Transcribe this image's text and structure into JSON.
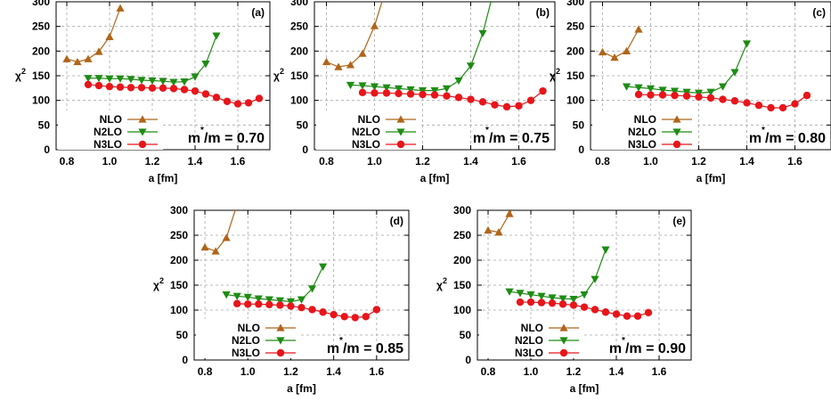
{
  "colors": {
    "NLO": "#b0651a",
    "N2LO": "#1e8c14",
    "N3LO": "#e8151a",
    "grid": "#a8a8a8"
  },
  "chart_data": [
    {
      "type": "line",
      "panel": "(a)",
      "xlabel": "a  [fm]",
      "ylabel": "χ",
      "xlim": [
        0.75,
        1.75
      ],
      "ylim": [
        0,
        300
      ],
      "xticks": [
        "0.8",
        "1.0",
        "1.2",
        "1.4",
        "1.6"
      ],
      "yticks": [
        "0",
        "50",
        "100",
        "150",
        "200",
        "250",
        "300"
      ],
      "ratio_m": "m",
      "ratio_rest": "/m = 0.70",
      "series": [
        {
          "name": "NLO",
          "marker": "triangle-up",
          "x": [
            0.8,
            0.85,
            0.9,
            0.95,
            1.0,
            1.05
          ],
          "y": [
            184,
            178,
            184,
            199,
            229,
            287
          ]
        },
        {
          "name": "N2LO",
          "marker": "triangle-down",
          "x": [
            0.9,
            0.95,
            1.0,
            1.05,
            1.1,
            1.15,
            1.2,
            1.25,
            1.3,
            1.35,
            1.4,
            1.45,
            1.5
          ],
          "y": [
            145,
            145,
            144,
            144,
            143,
            141,
            140,
            139,
            137,
            138,
            148,
            174,
            231
          ]
        },
        {
          "name": "N3LO",
          "marker": "circle",
          "x": [
            0.9,
            0.95,
            1.0,
            1.05,
            1.1,
            1.15,
            1.2,
            1.25,
            1.3,
            1.35,
            1.4,
            1.45,
            1.5,
            1.55,
            1.6,
            1.65,
            1.7
          ],
          "y": [
            132,
            130,
            128,
            127,
            126,
            126,
            125,
            125,
            124,
            122,
            119,
            113,
            106,
            98,
            93,
            95,
            104
          ]
        }
      ]
    },
    {
      "type": "line",
      "panel": "(b)",
      "xlabel": "a  [fm]",
      "ylabel": "χ",
      "xlim": [
        0.75,
        1.75
      ],
      "ylim": [
        0,
        300
      ],
      "xticks": [
        "0.8",
        "1.0",
        "1.2",
        "1.4",
        "1.6"
      ],
      "yticks": [
        "0",
        "50",
        "100",
        "150",
        "200",
        "250",
        "300"
      ],
      "ratio_m": "m",
      "ratio_rest": "/m = 0.75",
      "series": [
        {
          "name": "NLO",
          "marker": "triangle-up",
          "x": [
            0.8,
            0.85,
            0.9,
            0.95,
            1.0,
            1.05
          ],
          "y": [
            178,
            168,
            172,
            195,
            251,
            330
          ]
        },
        {
          "name": "N2LO",
          "marker": "triangle-down",
          "x": [
            0.9,
            0.95,
            1.0,
            1.05,
            1.1,
            1.15,
            1.2,
            1.25,
            1.3,
            1.35,
            1.4,
            1.45,
            1.5
          ],
          "y": [
            131,
            130,
            128,
            126,
            124,
            122,
            120,
            120,
            124,
            140,
            170,
            236,
            330
          ]
        },
        {
          "name": "N3LO",
          "marker": "circle",
          "x": [
            0.95,
            1.0,
            1.05,
            1.1,
            1.15,
            1.2,
            1.25,
            1.3,
            1.35,
            1.4,
            1.45,
            1.5,
            1.55,
            1.6,
            1.65,
            1.7
          ],
          "y": [
            116,
            115,
            115,
            114,
            113,
            112,
            111,
            109,
            106,
            102,
            97,
            91,
            87,
            89,
            100,
            119
          ]
        }
      ]
    },
    {
      "type": "line",
      "panel": "(c)",
      "xlabel": "a  [fm]",
      "ylabel": "χ",
      "xlim": [
        0.75,
        1.75
      ],
      "ylim": [
        0,
        300
      ],
      "xticks": [
        "0.8",
        "1.0",
        "1.2",
        "1.4",
        "1.6"
      ],
      "yticks": [
        "0",
        "50",
        "100",
        "150",
        "200",
        "250",
        "300"
      ],
      "ratio_m": "m",
      "ratio_rest": "/m = 0.80",
      "series": [
        {
          "name": "NLO",
          "marker": "triangle-up",
          "x": [
            0.8,
            0.85,
            0.9,
            0.95
          ],
          "y": [
            198,
            187,
            200,
            244
          ]
        },
        {
          "name": "N2LO",
          "marker": "triangle-down",
          "x": [
            0.9,
            0.95,
            1.0,
            1.05,
            1.1,
            1.15,
            1.2,
            1.25,
            1.3,
            1.35,
            1.4
          ],
          "y": [
            128,
            126,
            124,
            121,
            119,
            117,
            115,
            117,
            128,
            157,
            215
          ]
        },
        {
          "name": "N3LO",
          "marker": "circle",
          "x": [
            0.95,
            1.0,
            1.05,
            1.1,
            1.15,
            1.2,
            1.25,
            1.3,
            1.35,
            1.4,
            1.45,
            1.5,
            1.55,
            1.6,
            1.65
          ],
          "y": [
            112,
            111,
            111,
            110,
            109,
            107,
            105,
            102,
            99,
            95,
            90,
            85,
            85,
            93,
            110
          ]
        }
      ]
    },
    {
      "type": "line",
      "panel": "(d)",
      "xlabel": "a  [fm]",
      "ylabel": "χ",
      "xlim": [
        0.75,
        1.75
      ],
      "ylim": [
        0,
        300
      ],
      "xticks": [
        "0.8",
        "1.0",
        "1.2",
        "1.4",
        "1.6"
      ],
      "yticks": [
        "0",
        "50",
        "100",
        "150",
        "200",
        "250",
        "300"
      ],
      "ratio_m": "m",
      "ratio_rest": "/m = 0.85",
      "series": [
        {
          "name": "NLO",
          "marker": "triangle-up",
          "x": [
            0.8,
            0.85,
            0.9,
            0.95
          ],
          "y": [
            226,
            218,
            245,
            312
          ]
        },
        {
          "name": "N2LO",
          "marker": "triangle-down",
          "x": [
            0.9,
            0.95,
            1.0,
            1.05,
            1.1,
            1.15,
            1.2,
            1.25,
            1.3,
            1.35
          ],
          "y": [
            131,
            128,
            126,
            123,
            121,
            119,
            117,
            121,
            143,
            187
          ]
        },
        {
          "name": "N3LO",
          "marker": "circle",
          "x": [
            0.95,
            1.0,
            1.05,
            1.1,
            1.15,
            1.2,
            1.25,
            1.3,
            1.35,
            1.4,
            1.45,
            1.5,
            1.55,
            1.6
          ],
          "y": [
            113,
            112,
            112,
            111,
            110,
            108,
            105,
            101,
            96,
            91,
            87,
            85,
            87,
            101
          ]
        }
      ]
    },
    {
      "type": "line",
      "panel": "(e)",
      "xlabel": "a  [fm]",
      "ylabel": "χ",
      "xlim": [
        0.75,
        1.75
      ],
      "ylim": [
        0,
        300
      ],
      "xticks": [
        "0.8",
        "1.0",
        "1.2",
        "1.4",
        "1.6"
      ],
      "yticks": [
        "0",
        "50",
        "100",
        "150",
        "200",
        "250",
        "300"
      ],
      "ratio_m": "m",
      "ratio_rest": "/m = 0.90",
      "series": [
        {
          "name": "NLO",
          "marker": "triangle-up",
          "x": [
            0.8,
            0.85,
            0.9,
            0.95
          ],
          "y": [
            260,
            256,
            293,
            330
          ]
        },
        {
          "name": "N2LO",
          "marker": "triangle-down",
          "x": [
            0.9,
            0.95,
            1.0,
            1.05,
            1.1,
            1.15,
            1.2,
            1.25,
            1.3,
            1.35
          ],
          "y": [
            137,
            134,
            131,
            128,
            125,
            123,
            122,
            131,
            162,
            221
          ]
        },
        {
          "name": "N3LO",
          "marker": "circle",
          "x": [
            0.95,
            1.0,
            1.05,
            1.1,
            1.15,
            1.2,
            1.25,
            1.3,
            1.35,
            1.4,
            1.45,
            1.5,
            1.55
          ],
          "y": [
            116,
            116,
            115,
            114,
            112,
            110,
            106,
            101,
            96,
            92,
            88,
            88,
            95
          ]
        }
      ]
    }
  ]
}
